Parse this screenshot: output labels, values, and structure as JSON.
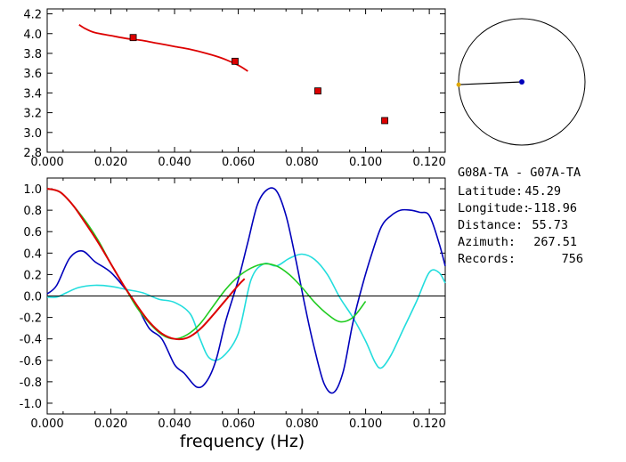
{
  "station_pair": "G08A-TA - G07A-TA",
  "info": [
    {
      "label": "Latitude:",
      "value": "45.29"
    },
    {
      "label": "Longitude:",
      "value": "-118.96"
    },
    {
      "label": "Distance:",
      "value": "55.73"
    },
    {
      "label": "Azimuth:",
      "value": "267.51"
    },
    {
      "label": "Records:",
      "value": "756"
    }
  ],
  "colors": {
    "red": "#dd0000",
    "green": "#22cc22",
    "blue": "#0000bb",
    "cyan": "#22dddd",
    "marker": "#dd0000"
  },
  "chart_data": [
    {
      "type": "scatter",
      "title": "",
      "xlabel": "",
      "ylabel": "",
      "xlim": [
        0.0,
        0.125
      ],
      "ylim": [
        2.8,
        4.25
      ],
      "xticks": [
        "0.000",
        "0.020",
        "0.040",
        "0.060",
        "0.080",
        "0.100",
        "0.120"
      ],
      "yticks": [
        "2.8",
        "3.0",
        "3.2",
        "3.4",
        "3.6",
        "3.8",
        "4.0",
        "4.2"
      ],
      "points": {
        "x": [
          0.027,
          0.059,
          0.085,
          0.106
        ],
        "y": [
          3.96,
          3.72,
          3.42,
          3.12
        ]
      },
      "curve": {
        "x": [
          0.01,
          0.012,
          0.015,
          0.02,
          0.025,
          0.03,
          0.035,
          0.04,
          0.045,
          0.05,
          0.055,
          0.06,
          0.063
        ],
        "y": [
          4.09,
          4.05,
          4.01,
          3.98,
          3.95,
          3.93,
          3.9,
          3.87,
          3.84,
          3.8,
          3.75,
          3.68,
          3.62
        ]
      }
    },
    {
      "type": "line",
      "title": "",
      "xlabel": "frequency (Hz)",
      "ylabel": "",
      "xlim": [
        0.0,
        0.125
      ],
      "ylim": [
        -1.1,
        1.1
      ],
      "xticks": [
        "0.000",
        "0.020",
        "0.040",
        "0.060",
        "0.080",
        "0.100",
        "0.120"
      ],
      "yticks": [
        "-1.0",
        "-0.8",
        "-0.6",
        "-0.4",
        "-0.2",
        "0.0",
        "0.2",
        "0.4",
        "0.6",
        "0.8",
        "1.0"
      ],
      "series": [
        {
          "color": "cyan",
          "x": [
            0.0,
            0.003,
            0.006,
            0.01,
            0.015,
            0.02,
            0.025,
            0.03,
            0.035,
            0.04,
            0.045,
            0.048,
            0.051,
            0.055,
            0.06,
            0.064,
            0.068,
            0.072,
            0.076,
            0.08,
            0.084,
            0.088,
            0.092,
            0.096,
            0.1,
            0.103,
            0.105,
            0.108,
            0.112,
            0.116,
            0.12,
            0.123,
            0.125
          ],
          "y": [
            -0.01,
            -0.01,
            0.03,
            0.08,
            0.1,
            0.09,
            0.06,
            0.03,
            -0.03,
            -0.06,
            -0.17,
            -0.4,
            -0.58,
            -0.57,
            -0.35,
            0.15,
            0.3,
            0.28,
            0.35,
            0.39,
            0.34,
            0.2,
            -0.02,
            -0.2,
            -0.42,
            -0.62,
            -0.67,
            -0.55,
            -0.3,
            -0.05,
            0.22,
            0.22,
            0.12
          ]
        },
        {
          "color": "blue",
          "x": [
            0.0,
            0.003,
            0.007,
            0.011,
            0.015,
            0.02,
            0.025,
            0.028,
            0.032,
            0.036,
            0.04,
            0.043,
            0.047,
            0.05,
            0.053,
            0.056,
            0.06,
            0.063,
            0.066,
            0.069,
            0.072,
            0.075,
            0.078,
            0.081,
            0.084,
            0.087,
            0.09,
            0.093,
            0.096,
            0.099,
            0.102,
            0.105,
            0.108,
            0.111,
            0.114,
            0.117,
            0.12,
            0.123,
            0.125
          ],
          "y": [
            0.02,
            0.1,
            0.35,
            0.42,
            0.32,
            0.22,
            0.05,
            -0.08,
            -0.3,
            -0.4,
            -0.64,
            -0.72,
            -0.85,
            -0.8,
            -0.6,
            -0.24,
            0.15,
            0.5,
            0.85,
            0.99,
            0.98,
            0.75,
            0.35,
            -0.1,
            -0.5,
            -0.82,
            -0.9,
            -0.7,
            -0.25,
            0.1,
            0.4,
            0.65,
            0.75,
            0.8,
            0.8,
            0.78,
            0.75,
            0.5,
            0.28
          ]
        },
        {
          "color": "green",
          "x": [
            0.0,
            0.004,
            0.008,
            0.012,
            0.016,
            0.02,
            0.024,
            0.028,
            0.032,
            0.036,
            0.04,
            0.044,
            0.048,
            0.052,
            0.056,
            0.06,
            0.064,
            0.068,
            0.072,
            0.076,
            0.08,
            0.084,
            0.088,
            0.092,
            0.096,
            0.1
          ],
          "y": [
            1.0,
            0.97,
            0.85,
            0.7,
            0.52,
            0.3,
            0.1,
            -0.1,
            -0.25,
            -0.36,
            -0.4,
            -0.36,
            -0.26,
            -0.1,
            0.06,
            0.18,
            0.26,
            0.3,
            0.28,
            0.2,
            0.08,
            -0.06,
            -0.17,
            -0.24,
            -0.2,
            -0.05
          ]
        },
        {
          "color": "red",
          "x": [
            0.0,
            0.004,
            0.008,
            0.012,
            0.016,
            0.02,
            0.024,
            0.028,
            0.032,
            0.036,
            0.04,
            0.044,
            0.048,
            0.052,
            0.056,
            0.06,
            0.062
          ],
          "y": [
            1.0,
            0.97,
            0.85,
            0.68,
            0.5,
            0.3,
            0.1,
            -0.08,
            -0.24,
            -0.35,
            -0.4,
            -0.39,
            -0.31,
            -0.18,
            -0.04,
            0.1,
            0.16
          ]
        },
        {
          "color": "black",
          "x": [
            0.0,
            0.125
          ],
          "y": [
            0.0,
            0.0
          ]
        }
      ]
    },
    {
      "type": "scatter",
      "title": "",
      "description_free": true,
      "circle_points": {
        "angle_deg": [
          267.51
        ]
      }
    }
  ]
}
